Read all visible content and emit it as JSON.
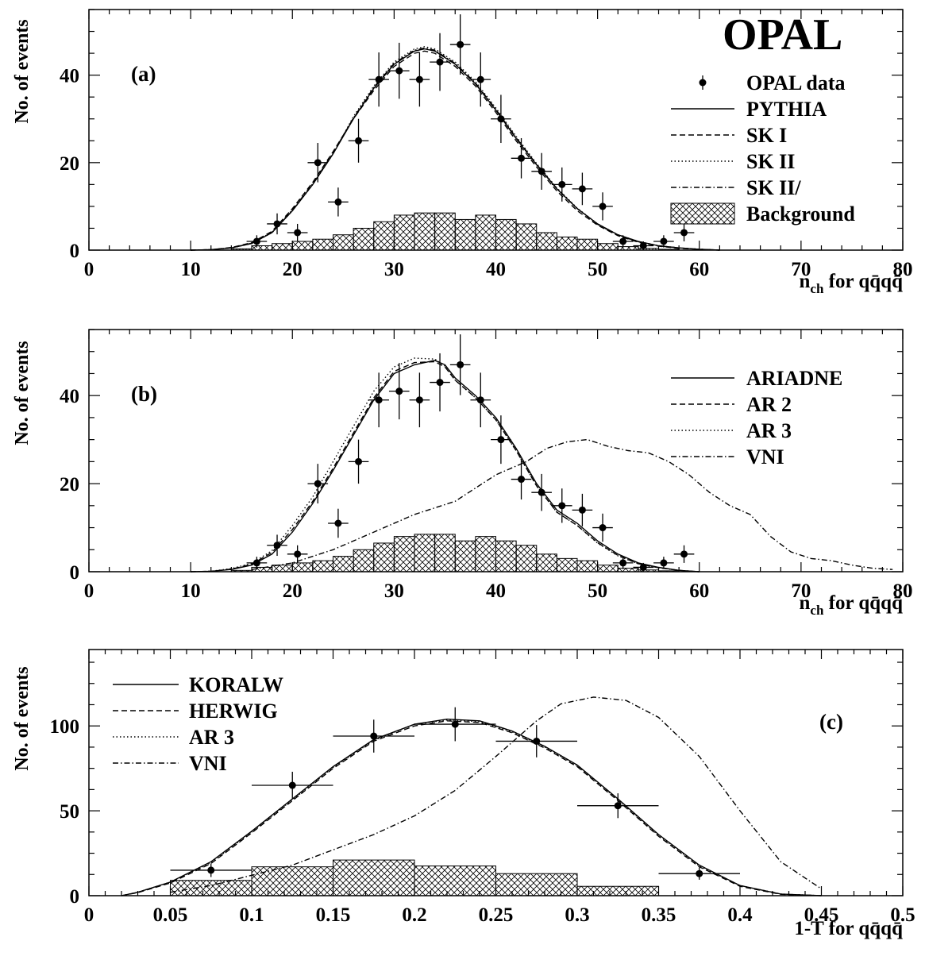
{
  "figure": {
    "experiment_label": "OPAL"
  },
  "chart_data": [
    {
      "type": "line",
      "panel_label": "(a)",
      "ylabel": "No. of events",
      "xlabel": "n_ch for qq̄qq̄",
      "xlabel_parts": {
        "main": "n",
        "sub": "ch",
        "rest": " for qq̄qq̄"
      },
      "xlim": [
        0,
        80
      ],
      "ylim": [
        0,
        55
      ],
      "xticks": [
        0,
        10,
        20,
        30,
        40,
        50,
        60,
        70,
        80
      ],
      "yticks": [
        0,
        20,
        40
      ],
      "legend_position": "right",
      "data": {
        "name": "OPAL data",
        "x": [
          16.5,
          18.5,
          20.5,
          22.5,
          24.5,
          26.5,
          28.5,
          30.5,
          32.5,
          34.5,
          36.5,
          38.5,
          40.5,
          42.5,
          44.5,
          46.5,
          48.5,
          50.5,
          52.5,
          54.5,
          56.5,
          58.5
        ],
        "y": [
          2,
          6,
          4,
          20,
          11,
          25,
          39,
          41,
          39,
          43,
          47,
          39,
          30,
          21,
          18,
          15,
          14,
          10,
          2,
          1,
          2,
          4
        ],
        "xerr": 1,
        "yerr": [
          1.4,
          2.4,
          2.0,
          4.5,
          3.3,
          5.0,
          6.2,
          6.4,
          6.2,
          6.6,
          6.9,
          6.2,
          5.5,
          4.6,
          4.2,
          3.9,
          3.7,
          3.2,
          1.4,
          1.0,
          1.4,
          2.0
        ]
      },
      "background": {
        "name": "Background",
        "bin_edges": [
          14,
          16,
          18,
          20,
          22,
          24,
          26,
          28,
          30,
          32,
          34,
          36,
          38,
          40,
          42,
          44,
          46,
          48,
          50,
          52,
          54,
          56,
          58
        ],
        "values": [
          0.3,
          1,
          1.5,
          2,
          2.5,
          3.5,
          5,
          6.5,
          8,
          8.5,
          8.5,
          7,
          8,
          7,
          6,
          4,
          3,
          2.5,
          1.5,
          0.8,
          0.4,
          0.2
        ]
      },
      "series": [
        {
          "name": "PYTHIA",
          "style": "solid",
          "x": [
            10,
            12,
            14,
            16,
            18,
            20,
            22,
            24,
            26,
            28,
            30,
            32,
            33,
            34,
            36,
            38,
            40,
            42,
            44,
            46,
            48,
            50,
            52,
            54,
            56,
            58,
            60,
            62
          ],
          "y": [
            0,
            0.1,
            0.5,
            1.5,
            4,
            9,
            15,
            22,
            30,
            37,
            42.5,
            45.5,
            46,
            45.5,
            42.5,
            38,
            32,
            25.5,
            19.5,
            14,
            9.5,
            6,
            3.5,
            2,
            1,
            0.5,
            0.2,
            0
          ]
        },
        {
          "name": "SK I",
          "style": "dash",
          "x": [
            10,
            12,
            14,
            16,
            18,
            20,
            22,
            24,
            26,
            28,
            30,
            32,
            33,
            34,
            36,
            38,
            40,
            42,
            44,
            46,
            48,
            50,
            52,
            54,
            56,
            58,
            60,
            62
          ],
          "y": [
            0,
            0.1,
            0.6,
            1.7,
            4.3,
            9.5,
            15.5,
            22.5,
            30,
            36.5,
            42,
            45,
            45.5,
            45,
            42,
            37.5,
            31.5,
            25,
            19,
            13.5,
            9,
            5.7,
            3.3,
            1.8,
            0.9,
            0.4,
            0.2,
            0
          ]
        },
        {
          "name": "SK II",
          "style": "dot",
          "x": [
            10,
            12,
            14,
            16,
            18,
            20,
            22,
            24,
            26,
            28,
            30,
            32,
            33,
            34,
            36,
            38,
            40,
            42,
            44,
            46,
            48,
            50,
            52,
            54,
            56,
            58,
            60,
            62
          ],
          "y": [
            0,
            0.1,
            0.5,
            1.5,
            4,
            9,
            15,
            22,
            30.5,
            37.5,
            43,
            46,
            46.5,
            46,
            43,
            38.5,
            32.5,
            26,
            19.8,
            14.2,
            9.6,
            6,
            3.5,
            2,
            1,
            0.5,
            0.2,
            0
          ]
        },
        {
          "name": "SK II/",
          "style": "dashdot",
          "x": [
            10,
            12,
            14,
            16,
            18,
            20,
            22,
            24,
            26,
            28,
            30,
            32,
            33,
            34,
            36,
            38,
            40,
            42,
            44,
            46,
            48,
            50,
            52,
            54,
            56,
            58,
            60,
            62
          ],
          "y": [
            0,
            0.1,
            0.5,
            1.6,
            4.1,
            9.2,
            15.2,
            22.2,
            30.2,
            37.2,
            42.7,
            45.7,
            46.2,
            45.7,
            42.7,
            38.2,
            32.2,
            25.7,
            19.6,
            14.1,
            9.5,
            5.9,
            3.4,
            1.9,
            1,
            0.5,
            0.2,
            0
          ]
        }
      ]
    },
    {
      "type": "line",
      "panel_label": "(b)",
      "ylabel": "No. of events",
      "xlabel": "n_ch for qq̄qq̄",
      "xlabel_parts": {
        "main": "n",
        "sub": "ch",
        "rest": " for qq̄qq̄"
      },
      "xlim": [
        0,
        80
      ],
      "ylim": [
        0,
        55
      ],
      "xticks": [
        0,
        10,
        20,
        30,
        40,
        50,
        60,
        70,
        80
      ],
      "yticks": [
        0,
        20,
        40
      ],
      "legend_position": "right",
      "data": {
        "name": "OPAL data",
        "x": [
          16.5,
          18.5,
          20.5,
          22.5,
          24.5,
          26.5,
          28.5,
          30.5,
          32.5,
          34.5,
          36.5,
          38.5,
          40.5,
          42.5,
          44.5,
          46.5,
          48.5,
          50.5,
          52.5,
          54.5,
          56.5,
          58.5
        ],
        "y": [
          2,
          6,
          4,
          20,
          11,
          25,
          39,
          41,
          39,
          43,
          47,
          39,
          30,
          21,
          18,
          15,
          14,
          10,
          2,
          1,
          2,
          4
        ],
        "xerr": 1,
        "yerr": [
          1.4,
          2.4,
          2.0,
          4.5,
          3.3,
          5.0,
          6.2,
          6.4,
          6.2,
          6.6,
          6.9,
          6.2,
          5.5,
          4.6,
          4.2,
          3.9,
          3.7,
          3.2,
          1.4,
          1.0,
          1.4,
          2.0
        ]
      },
      "background": {
        "name": "Background",
        "bin_edges": [
          14,
          16,
          18,
          20,
          22,
          24,
          26,
          28,
          30,
          32,
          34,
          36,
          38,
          40,
          42,
          44,
          46,
          48,
          50,
          52,
          54,
          56,
          58
        ],
        "values": [
          0.3,
          1,
          1.5,
          2,
          2.5,
          3.5,
          5,
          6.5,
          8,
          8.5,
          8.5,
          7,
          8,
          7,
          6,
          4,
          3,
          2.5,
          1.5,
          0.8,
          0.4,
          0.2
        ]
      },
      "series": [
        {
          "name": "ARIADNE",
          "style": "solid",
          "x": [
            10,
            12,
            14,
            16,
            18,
            20,
            22,
            24,
            26,
            28,
            30,
            32,
            34,
            35,
            36,
            38,
            40,
            42,
            44,
            46,
            48,
            50,
            52,
            54,
            56,
            58,
            60
          ],
          "y": [
            0,
            0.1,
            0.5,
            1.5,
            4,
            9,
            15.5,
            23,
            31,
            39,
            45,
            47,
            48,
            47,
            44,
            40,
            35,
            28,
            20,
            14,
            11,
            7,
            4,
            2,
            1,
            0.3,
            0
          ]
        },
        {
          "name": "AR 2",
          "style": "dash",
          "x": [
            10,
            12,
            14,
            16,
            18,
            20,
            22,
            24,
            26,
            28,
            30,
            32,
            34,
            35,
            36,
            38,
            40,
            42,
            44,
            46,
            48,
            50,
            52,
            54,
            56,
            58,
            60
          ],
          "y": [
            0,
            0.1,
            0.6,
            1.7,
            4.4,
            9.6,
            16,
            23.5,
            31.5,
            39.5,
            45.5,
            47.5,
            47.7,
            46.5,
            43.5,
            39.5,
            34.5,
            27.5,
            19.5,
            13.5,
            10.5,
            6.6,
            3.7,
            1.8,
            0.9,
            0.3,
            0
          ]
        },
        {
          "name": "AR 3",
          "style": "dot",
          "x": [
            10,
            12,
            14,
            16,
            18,
            20,
            22,
            24,
            26,
            28,
            30,
            32,
            34,
            35,
            36,
            38,
            40,
            42,
            44,
            46,
            48,
            50,
            52,
            54,
            56,
            58,
            60
          ],
          "y": [
            0,
            0.1,
            0.7,
            1.9,
            4.8,
            10.5,
            17,
            25,
            33,
            41,
            46.5,
            48.5,
            48.3,
            46.7,
            43.5,
            39.5,
            34.5,
            27.5,
            19.5,
            13.5,
            10.5,
            6.5,
            3.6,
            1.8,
            0.9,
            0.3,
            0
          ]
        },
        {
          "name": "VNI",
          "style": "dashdot",
          "x": [
            16,
            20,
            24,
            28,
            32,
            36,
            40,
            43,
            45,
            47,
            49,
            51,
            53,
            55,
            57,
            59,
            61,
            63,
            65,
            67,
            69,
            71,
            73,
            75,
            77,
            79
          ],
          "y": [
            0.5,
            2,
            5,
            9,
            13,
            16,
            22,
            25,
            28,
            29.5,
            30,
            28.5,
            27.5,
            27,
            25,
            22,
            18,
            15,
            13,
            8,
            4.5,
            3,
            2.5,
            1.5,
            0.8,
            0.5
          ]
        }
      ]
    },
    {
      "type": "line",
      "panel_label": "(c)",
      "ylabel": "No. of events",
      "xlabel": "1-T for qq̄qq̄",
      "xlabel_parts": {
        "main": "1-T",
        "sub": "",
        "rest": " for qq̄qq̄"
      },
      "xlim": [
        0,
        0.5
      ],
      "ylim": [
        0,
        145
      ],
      "xticks": [
        0,
        0.05,
        0.1,
        0.15,
        0.2,
        0.25,
        0.3,
        0.35,
        0.4,
        0.45,
        0.5
      ],
      "yticks": [
        0,
        50,
        100
      ],
      "legend_position": "top-left",
      "data": {
        "name": "OPAL data",
        "x": [
          0.075,
          0.125,
          0.175,
          0.225,
          0.275,
          0.325,
          0.375
        ],
        "y": [
          15,
          65,
          94,
          101,
          91,
          53,
          13
        ],
        "xerr": 0.025,
        "yerr": [
          4,
          8,
          9.7,
          10,
          9.5,
          7.3,
          3.6
        ]
      },
      "background": {
        "name": "Background",
        "bin_edges": [
          0.05,
          0.1,
          0.15,
          0.2,
          0.25,
          0.3,
          0.35
        ],
        "values": [
          9,
          17,
          21,
          17.5,
          13,
          5.5
        ]
      },
      "series": [
        {
          "name": "KORALW",
          "style": "solid",
          "x": [
            0.02,
            0.03,
            0.05,
            0.075,
            0.1,
            0.125,
            0.15,
            0.175,
            0.2,
            0.22,
            0.24,
            0.26,
            0.28,
            0.3,
            0.325,
            0.35,
            0.375,
            0.4,
            0.425,
            0.45
          ],
          "y": [
            0,
            2,
            8,
            20,
            38,
            57,
            76,
            92,
            101,
            104,
            103,
            97,
            88,
            77,
            57,
            36,
            18,
            6,
            1,
            0
          ]
        },
        {
          "name": "HERWIG",
          "style": "dash",
          "x": [
            0.02,
            0.03,
            0.05,
            0.075,
            0.1,
            0.125,
            0.15,
            0.175,
            0.2,
            0.22,
            0.24,
            0.26,
            0.28,
            0.3,
            0.325,
            0.35,
            0.375,
            0.4,
            0.425,
            0.45
          ],
          "y": [
            0,
            1.8,
            7.5,
            19,
            37,
            56,
            75,
            91,
            100,
            103,
            102,
            96,
            87,
            76,
            56,
            35,
            17,
            5.5,
            0.8,
            0
          ]
        },
        {
          "name": "AR 3",
          "style": "dot",
          "x": [
            0.02,
            0.03,
            0.05,
            0.075,
            0.1,
            0.125,
            0.15,
            0.175,
            0.2,
            0.22,
            0.24,
            0.26,
            0.28,
            0.3,
            0.325,
            0.35,
            0.375,
            0.4,
            0.425,
            0.45
          ],
          "y": [
            0,
            2,
            8,
            19.5,
            37.5,
            56.5,
            75.5,
            91.5,
            101,
            103.5,
            102.5,
            96.5,
            87.5,
            76.5,
            56.5,
            35.5,
            17.5,
            6,
            1,
            0
          ]
        },
        {
          "name": "VNI",
          "style": "dashdot",
          "x": [
            0.05,
            0.075,
            0.1,
            0.125,
            0.15,
            0.175,
            0.2,
            0.225,
            0.25,
            0.275,
            0.29,
            0.31,
            0.33,
            0.35,
            0.375,
            0.4,
            0.425,
            0.45
          ],
          "y": [
            2,
            6,
            12,
            18,
            27,
            36,
            47,
            62,
            82,
            103,
            113,
            117,
            115,
            105,
            82,
            50,
            20,
            4
          ]
        }
      ]
    }
  ]
}
